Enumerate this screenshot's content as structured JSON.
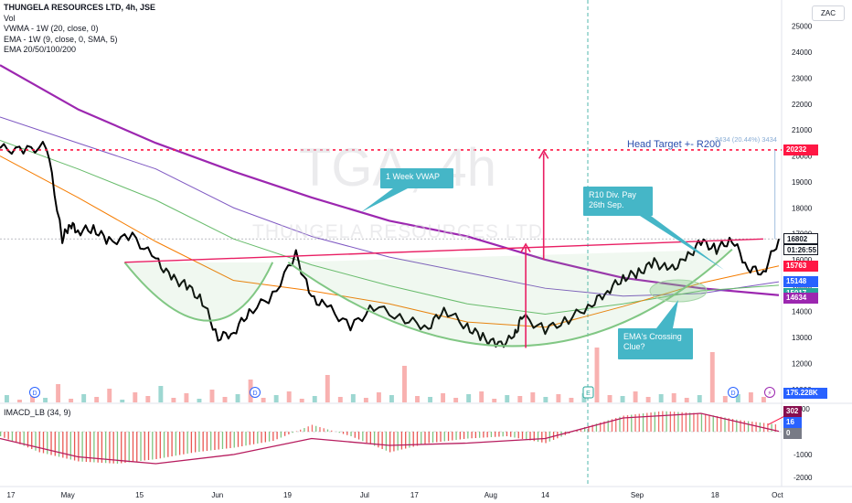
{
  "legend": {
    "title": "THUNGELA RESOURCES LTD, 4h, JSE",
    "vol": "Vol",
    "vwma": "VWMA - 1W (20, close, 0)",
    "ema": "EMA - 1W (9, close, 0, SMA, 5)",
    "ema_multi": "EMA 20/50/100/200"
  },
  "macd_legend": "IMACD_LB (34, 9)",
  "currency": "ZAC",
  "watermark": {
    "symbol": "TGA, 4h",
    "name": "THUNGELA RESOURCES LTD"
  },
  "annotations": {
    "head_target": "Head Target +- R200",
    "measure": "3434 (20.44%) 3434",
    "vwap_callout": "1 Week VWAP",
    "div_callout_line1": "R10 Div. Pay",
    "div_callout_line2": "26th Sep.",
    "ema_callout_line1": "EMA's Crossing",
    "ema_callout_line2": "Clue?"
  },
  "price_labels": [
    {
      "text": "20232",
      "bg": "#ff1744",
      "color": "#ffffff",
      "value": 20232
    },
    {
      "text": "16802",
      "bg": "#ffffff",
      "color": "#131722",
      "value": 16802
    },
    {
      "text": "01:26:55",
      "bg": "#ffffff",
      "color": "#131722",
      "value": 16560
    },
    {
      "text": "15763",
      "bg": "#ff1744",
      "color": "#ffffff",
      "value": 15763
    },
    {
      "text": "15148",
      "bg": "#2962ff",
      "color": "#ffffff",
      "value": 15148
    },
    {
      "text": "15017",
      "bg": "#26a69a",
      "color": "#ffffff",
      "value": 15017
    },
    {
      "text": "14634",
      "bg": "#9c27b0",
      "color": "#ffffff",
      "value": 14634
    }
  ],
  "volume_label": {
    "text": "175.228K",
    "bg": "#2962ff"
  },
  "macd_labels": [
    {
      "text": "302",
      "bg": "#880e4f",
      "value": 302
    },
    {
      "text": "16",
      "bg": "#2962ff",
      "value": 16
    },
    {
      "text": "0",
      "bg": "#787b86",
      "value": 0
    }
  ],
  "colors": {
    "price": "#000000",
    "ema200": "#9c27b0",
    "vwma": "#7e57c2",
    "ema100": "#66bb6a",
    "ema50": "#f57c00",
    "neckline": "#e91e63",
    "cup": "#81c784",
    "target": "#ff1744",
    "volume_up": "#26a69a",
    "volume_down": "#ef5350",
    "accent": "#45b6c7",
    "macd_signal": "#b71c5e"
  },
  "chart_data": [
    {
      "type": "line",
      "title": "THUNGELA RESOURCES LTD, 4h, JSE",
      "x_ticks": [
        "17",
        "May",
        "15",
        "Jun",
        "19",
        "Jul",
        "17",
        "Aug",
        "14",
        "Sep",
        "18",
        "Oct"
      ],
      "y_ticks": [
        11000,
        12000,
        13000,
        14000,
        15000,
        16000,
        17000,
        18000,
        19000,
        20000,
        21000,
        22000,
        23000,
        24000,
        25000
      ],
      "ylim": [
        10500,
        25800
      ],
      "grid": false,
      "series": [
        {
          "name": "close",
          "x": [
            0,
            3,
            6,
            8,
            9,
            10,
            12,
            14,
            17,
            20,
            22,
            24,
            26,
            28,
            30,
            32,
            35,
            38,
            40,
            42,
            45,
            48,
            52,
            55,
            57,
            60,
            62,
            64,
            66,
            67,
            70,
            73,
            76,
            78,
            80,
            82,
            84,
            86,
            88,
            90,
            92,
            94,
            96,
            98,
            100
          ],
          "y": [
            20300,
            20200,
            20400,
            16800,
            17400,
            17100,
            17200,
            16700,
            16900,
            16000,
            15300,
            15000,
            14400,
            13000,
            13200,
            14000,
            14600,
            16200,
            14500,
            14200,
            13400,
            14200,
            13700,
            13400,
            14100,
            13400,
            13000,
            12700,
            13000,
            13800,
            13300,
            13700,
            14300,
            14800,
            15300,
            15500,
            15900,
            15600,
            16000,
            16700,
            16400,
            16800,
            15700,
            15500,
            16802
          ]
        },
        {
          "name": "EMA 200",
          "x": [
            0,
            10,
            20,
            30,
            40,
            50,
            60,
            70,
            80,
            90,
            100
          ],
          "y": [
            23500,
            21800,
            20500,
            19400,
            18400,
            17500,
            16900,
            16000,
            15300,
            14900,
            14634
          ]
        },
        {
          "name": "VWMA",
          "x": [
            0,
            10,
            20,
            30,
            40,
            50,
            60,
            70,
            80,
            90,
            100
          ],
          "y": [
            21500,
            20500,
            19500,
            18000,
            16900,
            16100,
            15500,
            14900,
            14600,
            14700,
            15148
          ]
        },
        {
          "name": "EMA 100",
          "x": [
            0,
            10,
            20,
            30,
            40,
            50,
            60,
            70,
            80,
            90,
            100
          ],
          "y": [
            20600,
            19500,
            18300,
            16800,
            15800,
            15000,
            14300,
            13900,
            14300,
            14800,
            15017
          ]
        },
        {
          "name": "EMA 50",
          "x": [
            0,
            10,
            20,
            30,
            40,
            50,
            60,
            70,
            80,
            90,
            100
          ],
          "y": [
            20000,
            18400,
            16700,
            15200,
            14800,
            14300,
            13600,
            13400,
            14200,
            15100,
            15763
          ]
        }
      ],
      "annotations": [
        "Head Target +- R200",
        "1 Week VWAP",
        "R10 Div. Pay 26th Sep.",
        "EMA's Crossing Clue?"
      ]
    },
    {
      "type": "bar",
      "title": "Vol",
      "last_value": "175.228K",
      "values": [
        8,
        3,
        12,
        5,
        20,
        4,
        9,
        6,
        15,
        3,
        11,
        7,
        18,
        5,
        10,
        4,
        14,
        6,
        9,
        25,
        5,
        8,
        12,
        4,
        7,
        30,
        6,
        9,
        5,
        11,
        8,
        40,
        7,
        6,
        10,
        5,
        9,
        12,
        4,
        8,
        7,
        11,
        6,
        9,
        5,
        10,
        60,
        8,
        7,
        12,
        6,
        9,
        10,
        5,
        8,
        55,
        7,
        9,
        11,
        6
      ]
    },
    {
      "type": "bar",
      "title": "IMACD_LB (34, 9)",
      "y_ticks": [
        -2000,
        -1000,
        0,
        1000
      ],
      "ylim": [
        -2400,
        1200
      ],
      "histogram_x": [
        0,
        5,
        10,
        15,
        20,
        25,
        30,
        35,
        40,
        45,
        50,
        55,
        60,
        65,
        70,
        75,
        80,
        85,
        90,
        95,
        100
      ],
      "histogram": [
        -200,
        -900,
        -1300,
        -1400,
        -1200,
        -900,
        -700,
        -400,
        300,
        -200,
        -900,
        -500,
        -300,
        -200,
        -500,
        200,
        700,
        900,
        800,
        500,
        302
      ],
      "signal_x": [
        0,
        10,
        20,
        30,
        40,
        50,
        60,
        70,
        80,
        90,
        100
      ],
      "signal": [
        -300,
        -1100,
        -1400,
        -1000,
        -300,
        -600,
        -500,
        -300,
        600,
        800,
        16
      ]
    }
  ]
}
